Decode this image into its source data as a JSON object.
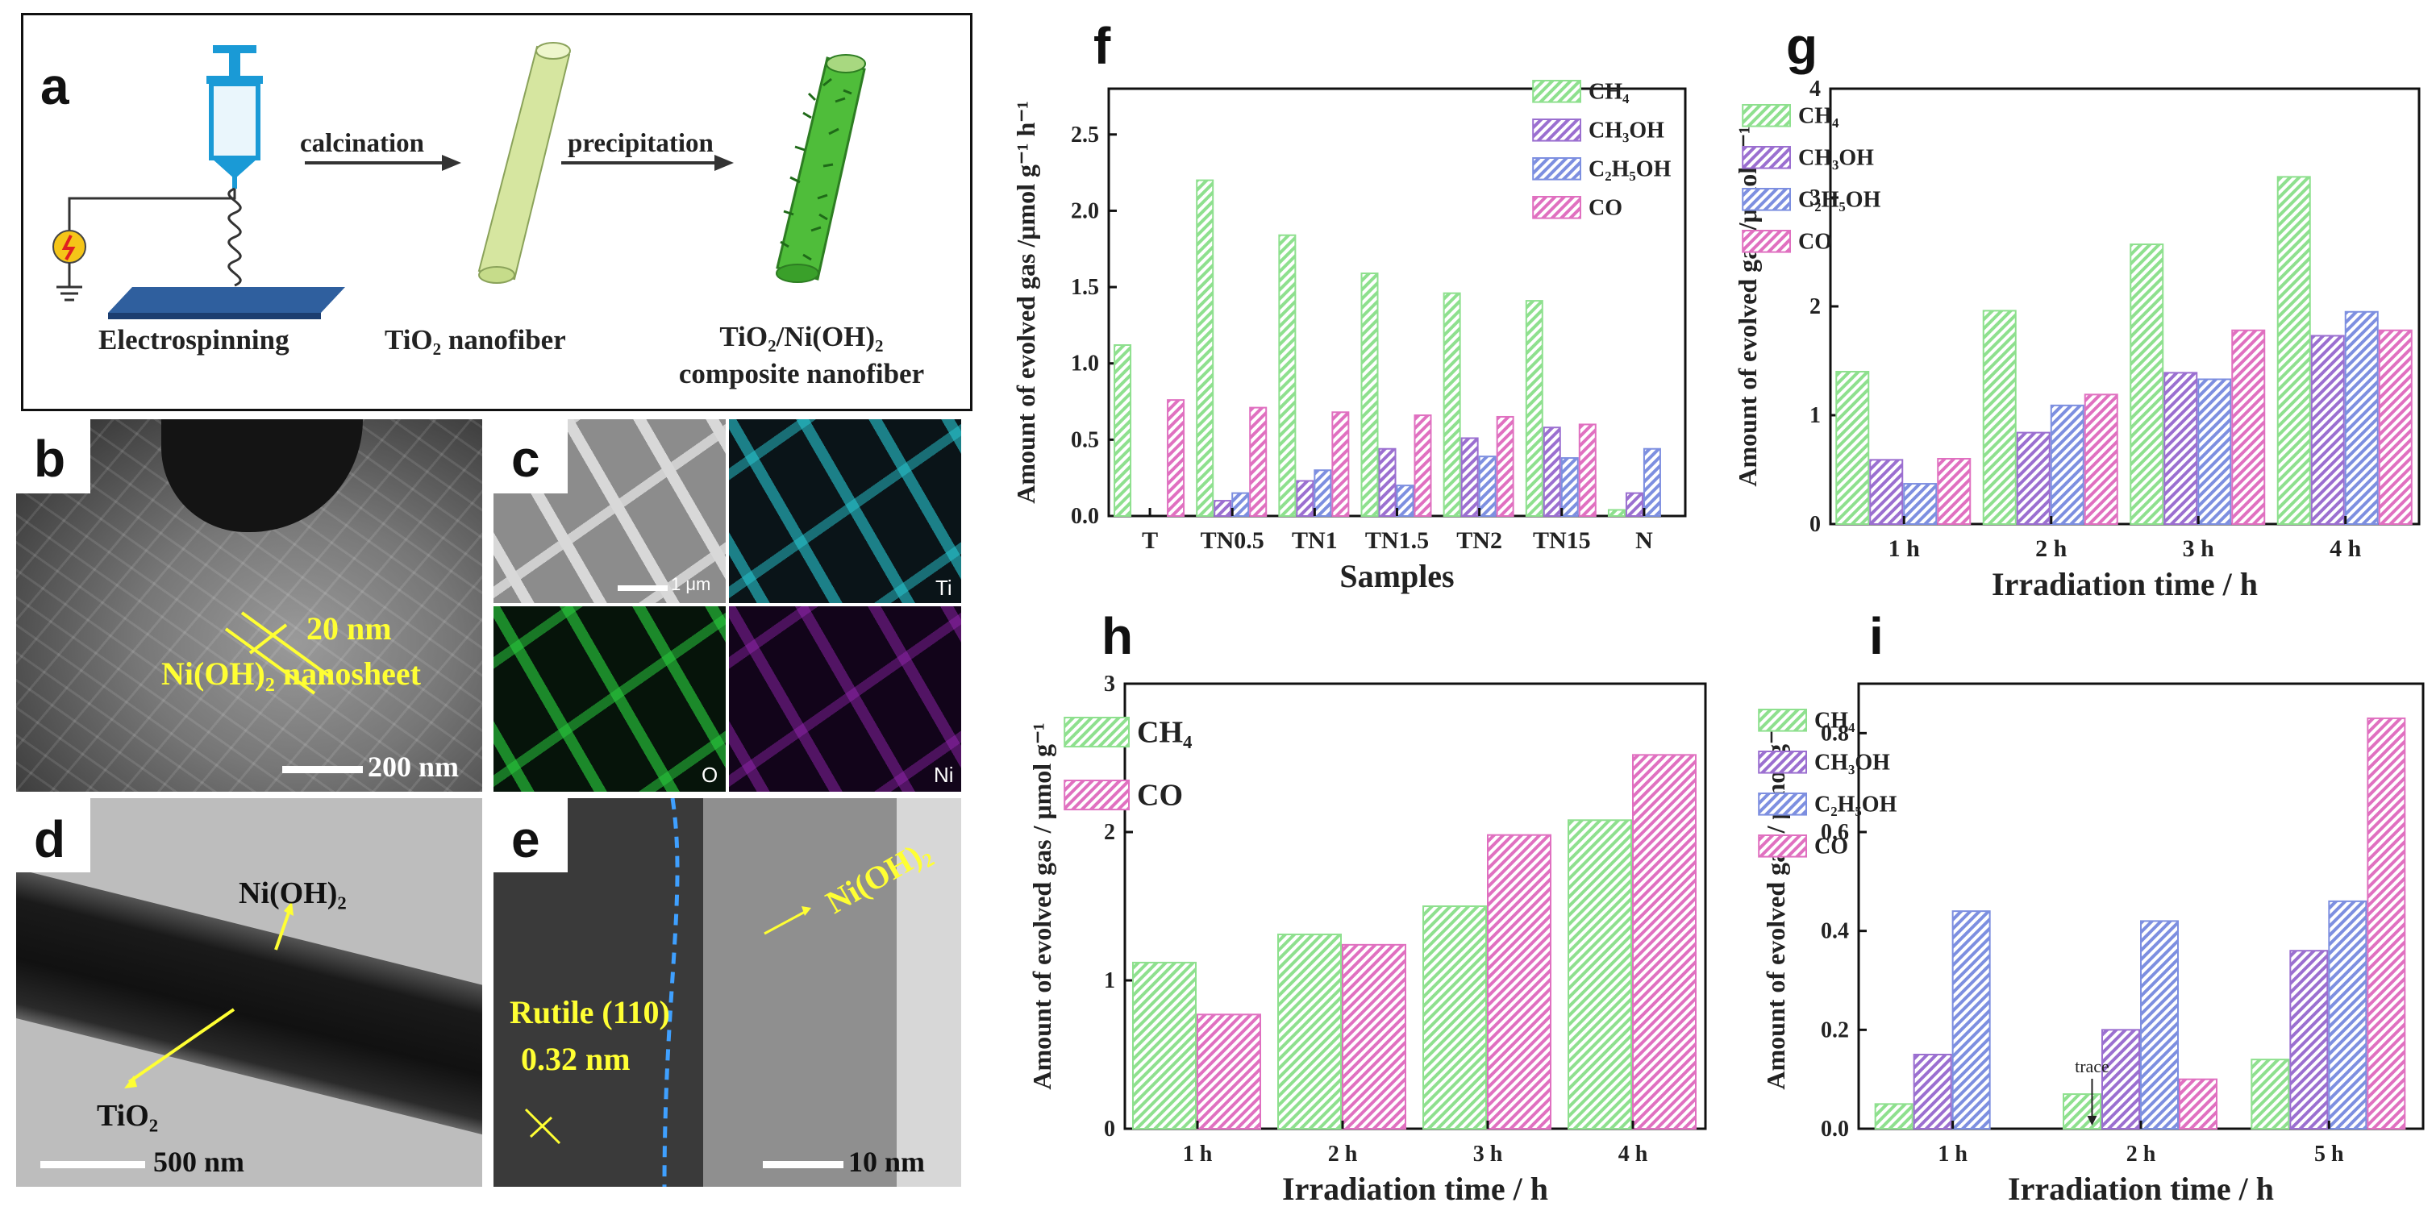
{
  "panel_letters": {
    "a": "a",
    "b": "b",
    "c": "c",
    "d": "d",
    "e": "e",
    "f": "f",
    "g": "g",
    "h": "h",
    "i": "i"
  },
  "schematic": {
    "step1_arrow": "calcination",
    "step2_arrow": "precipitation",
    "label_electrospinning": "Electrospinning",
    "label_tio2_nanofiber": "TiO₂ nanofiber",
    "label_composite_line1": "TiO₂/Ni(OH)₂",
    "label_composite_line2": "composite nanofiber"
  },
  "sem_b": {
    "thickness": "20 nm",
    "nanosheet": "Ni(OH)₂ nanosheet",
    "scale": "200 nm"
  },
  "eds_c": {
    "scale": "1 μm",
    "ti": "Ti",
    "o": "O",
    "ni": "Ni"
  },
  "tem_d": {
    "nioh2": "Ni(OH)₂",
    "tio2": "TiO₂",
    "scale": "500 nm"
  },
  "hrtem_e": {
    "rutile": "Rutile (110)",
    "spacing": "0.32 nm",
    "nioh2": "Ni(OH)₂",
    "scale": "10 nm"
  },
  "colors": {
    "ch4": "#8ee08e",
    "ch3oh": "#9b6fd0",
    "c2h5oh": "#7d8fe0",
    "co": "#e070c0"
  },
  "chart_data": [
    {
      "id": "f",
      "type": "bar",
      "xlabel": "Samples",
      "ylabel": "Amount of evolved gas /μmol g⁻¹ h⁻¹",
      "ylim": [
        0,
        2.8
      ],
      "yticks": [
        "0.0",
        "0.5",
        "1.0",
        "1.5",
        "2.0",
        "2.5"
      ],
      "categories": [
        "T",
        "TN0.5",
        "TN1",
        "TN1.5",
        "TN2",
        "TN15",
        "N"
      ],
      "series": [
        {
          "name": "CH₄",
          "values": [
            1.12,
            2.2,
            1.84,
            1.59,
            1.46,
            1.41,
            0.04
          ]
        },
        {
          "name": "CH₃OH",
          "values": [
            0,
            0.1,
            0.23,
            0.44,
            0.51,
            0.58,
            0.15
          ]
        },
        {
          "name": "C₂H₅OH",
          "values": [
            0,
            0.15,
            0.3,
            0.2,
            0.39,
            0.38,
            0.44
          ]
        },
        {
          "name": "CO",
          "values": [
            0.76,
            0.71,
            0.68,
            0.66,
            0.65,
            0.6,
            0
          ]
        }
      ]
    },
    {
      "id": "g",
      "type": "bar",
      "xlabel": "Irradiation time / h",
      "ylabel": "Amount of evolved gas /μmol g⁻¹",
      "ylim": [
        0,
        4
      ],
      "yticks": [
        "0",
        "1",
        "2",
        "3",
        "4"
      ],
      "categories": [
        "1 h",
        "2 h",
        "3 h",
        "4 h"
      ],
      "series": [
        {
          "name": "CH₄",
          "values": [
            1.4,
            1.96,
            2.57,
            3.19
          ]
        },
        {
          "name": "CH₃OH",
          "values": [
            0.59,
            0.84,
            1.39,
            1.73
          ]
        },
        {
          "name": "C₂H₅OH",
          "values": [
            0.37,
            1.09,
            1.33,
            1.95
          ]
        },
        {
          "name": "CO",
          "values": [
            0.6,
            1.19,
            1.78,
            1.78
          ]
        }
      ]
    },
    {
      "id": "h",
      "type": "bar",
      "xlabel": "Irradiation time / h",
      "ylabel": "Amount of evolved gas / μmol g⁻¹",
      "ylim": [
        0,
        3
      ],
      "yticks": [
        "0",
        "1",
        "2",
        "3"
      ],
      "categories": [
        "1 h",
        "2 h",
        "3 h",
        "4 h"
      ],
      "series": [
        {
          "name": "CH₄",
          "values": [
            1.12,
            1.31,
            1.5,
            2.08
          ]
        },
        {
          "name": "CO",
          "values": [
            0.77,
            1.24,
            1.98,
            2.52
          ]
        }
      ]
    },
    {
      "id": "i",
      "type": "bar",
      "xlabel": "Irradiation time / h",
      "ylabel": "Amount of evolved gas / μmol g⁻¹",
      "ylim": [
        0,
        0.9
      ],
      "yticks": [
        "0.0",
        "0.2",
        "0.4",
        "0.6",
        "0.8"
      ],
      "categories": [
        "1 h",
        "2 h",
        "5 h"
      ],
      "annotation": "trace",
      "series": [
        {
          "name": "CH₄",
          "values": [
            0.05,
            0.07,
            0.14
          ]
        },
        {
          "name": "CH₃OH",
          "values": [
            0.15,
            0.2,
            0.36
          ]
        },
        {
          "name": "C₂H₅OH",
          "values": [
            0.44,
            0.42,
            0.46
          ]
        },
        {
          "name": "CO",
          "values": [
            0,
            0.1,
            0.83
          ]
        }
      ]
    }
  ]
}
